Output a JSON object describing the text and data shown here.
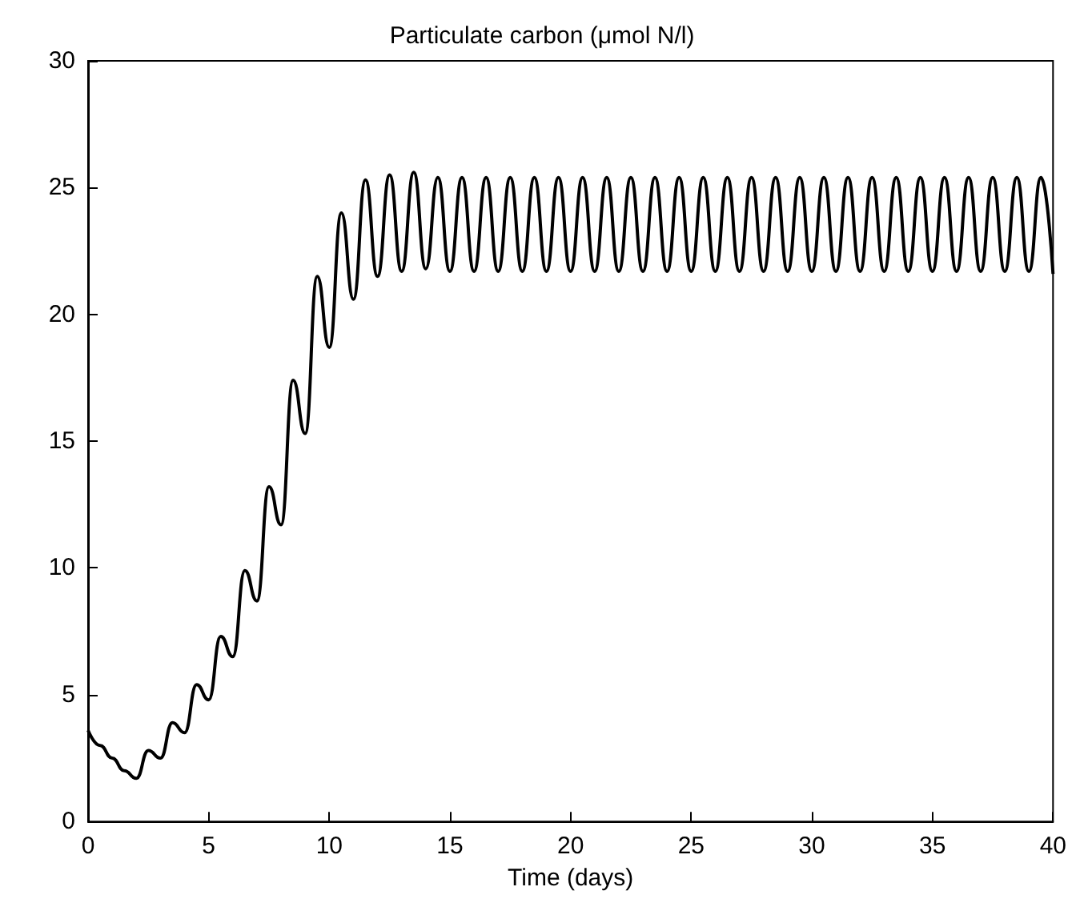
{
  "chart_data": {
    "type": "line",
    "title": "Particulate carbon (μmol N/l)",
    "xlabel": "Time (days)",
    "x": [
      0,
      0.5,
      1,
      1.5,
      2,
      2.5,
      3,
      3.5,
      4,
      4.5,
      5,
      5.5,
      6,
      6.5,
      7,
      7.5,
      8,
      8.5,
      9,
      9.5,
      10,
      10.5,
      11,
      11.5,
      12,
      12.5,
      13,
      13.5,
      14,
      14.5,
      15,
      15.5,
      16,
      16.5,
      17,
      17.5,
      18,
      18.5,
      19,
      19.5,
      20,
      20.5,
      21,
      21.5,
      22,
      22.5,
      23,
      23.5,
      24,
      24.5,
      25,
      25.5,
      26,
      26.5,
      27,
      27.5,
      28,
      28.5,
      29,
      29.5,
      30,
      30.5,
      31,
      31.5,
      32,
      32.5,
      33,
      33.5,
      34,
      34.5,
      35,
      35.5,
      36,
      36.5,
      37,
      37.5,
      38,
      38.5,
      39,
      39.5,
      40
    ],
    "series": [
      {
        "color": "#000000",
        "values": [
          3.6,
          3.0,
          2.5,
          2.0,
          1.7,
          2.8,
          2.5,
          3.9,
          3.5,
          5.4,
          4.8,
          7.3,
          6.5,
          9.9,
          8.7,
          13.2,
          11.7,
          17.4,
          15.3,
          21.5,
          18.7,
          24.0,
          20.6,
          25.3,
          21.5,
          25.5,
          21.7,
          25.6,
          21.8,
          25.4,
          21.7,
          25.4,
          21.7,
          25.4,
          21.7,
          25.4,
          21.7,
          25.4,
          21.7,
          25.4,
          21.7,
          25.4,
          21.7,
          25.4,
          21.7,
          25.4,
          21.7,
          25.4,
          21.7,
          25.4,
          21.7,
          25.4,
          21.7,
          25.4,
          21.7,
          25.4,
          21.7,
          25.4,
          21.7,
          25.4,
          21.7,
          25.4,
          21.7,
          25.4,
          21.7,
          25.4,
          21.7,
          25.4,
          21.7,
          25.4,
          21.7,
          25.4,
          21.7,
          25.4,
          21.7,
          25.4,
          21.7,
          25.4,
          21.7,
          25.4,
          21.6
        ]
      }
    ],
    "xlim": [
      0,
      40
    ],
    "xticks": [
      0,
      5,
      10,
      15,
      20,
      25,
      30,
      35,
      40
    ],
    "ylim": [
      0,
      30
    ],
    "yticks": [
      0,
      5,
      10,
      15,
      20,
      25,
      30
    ]
  }
}
